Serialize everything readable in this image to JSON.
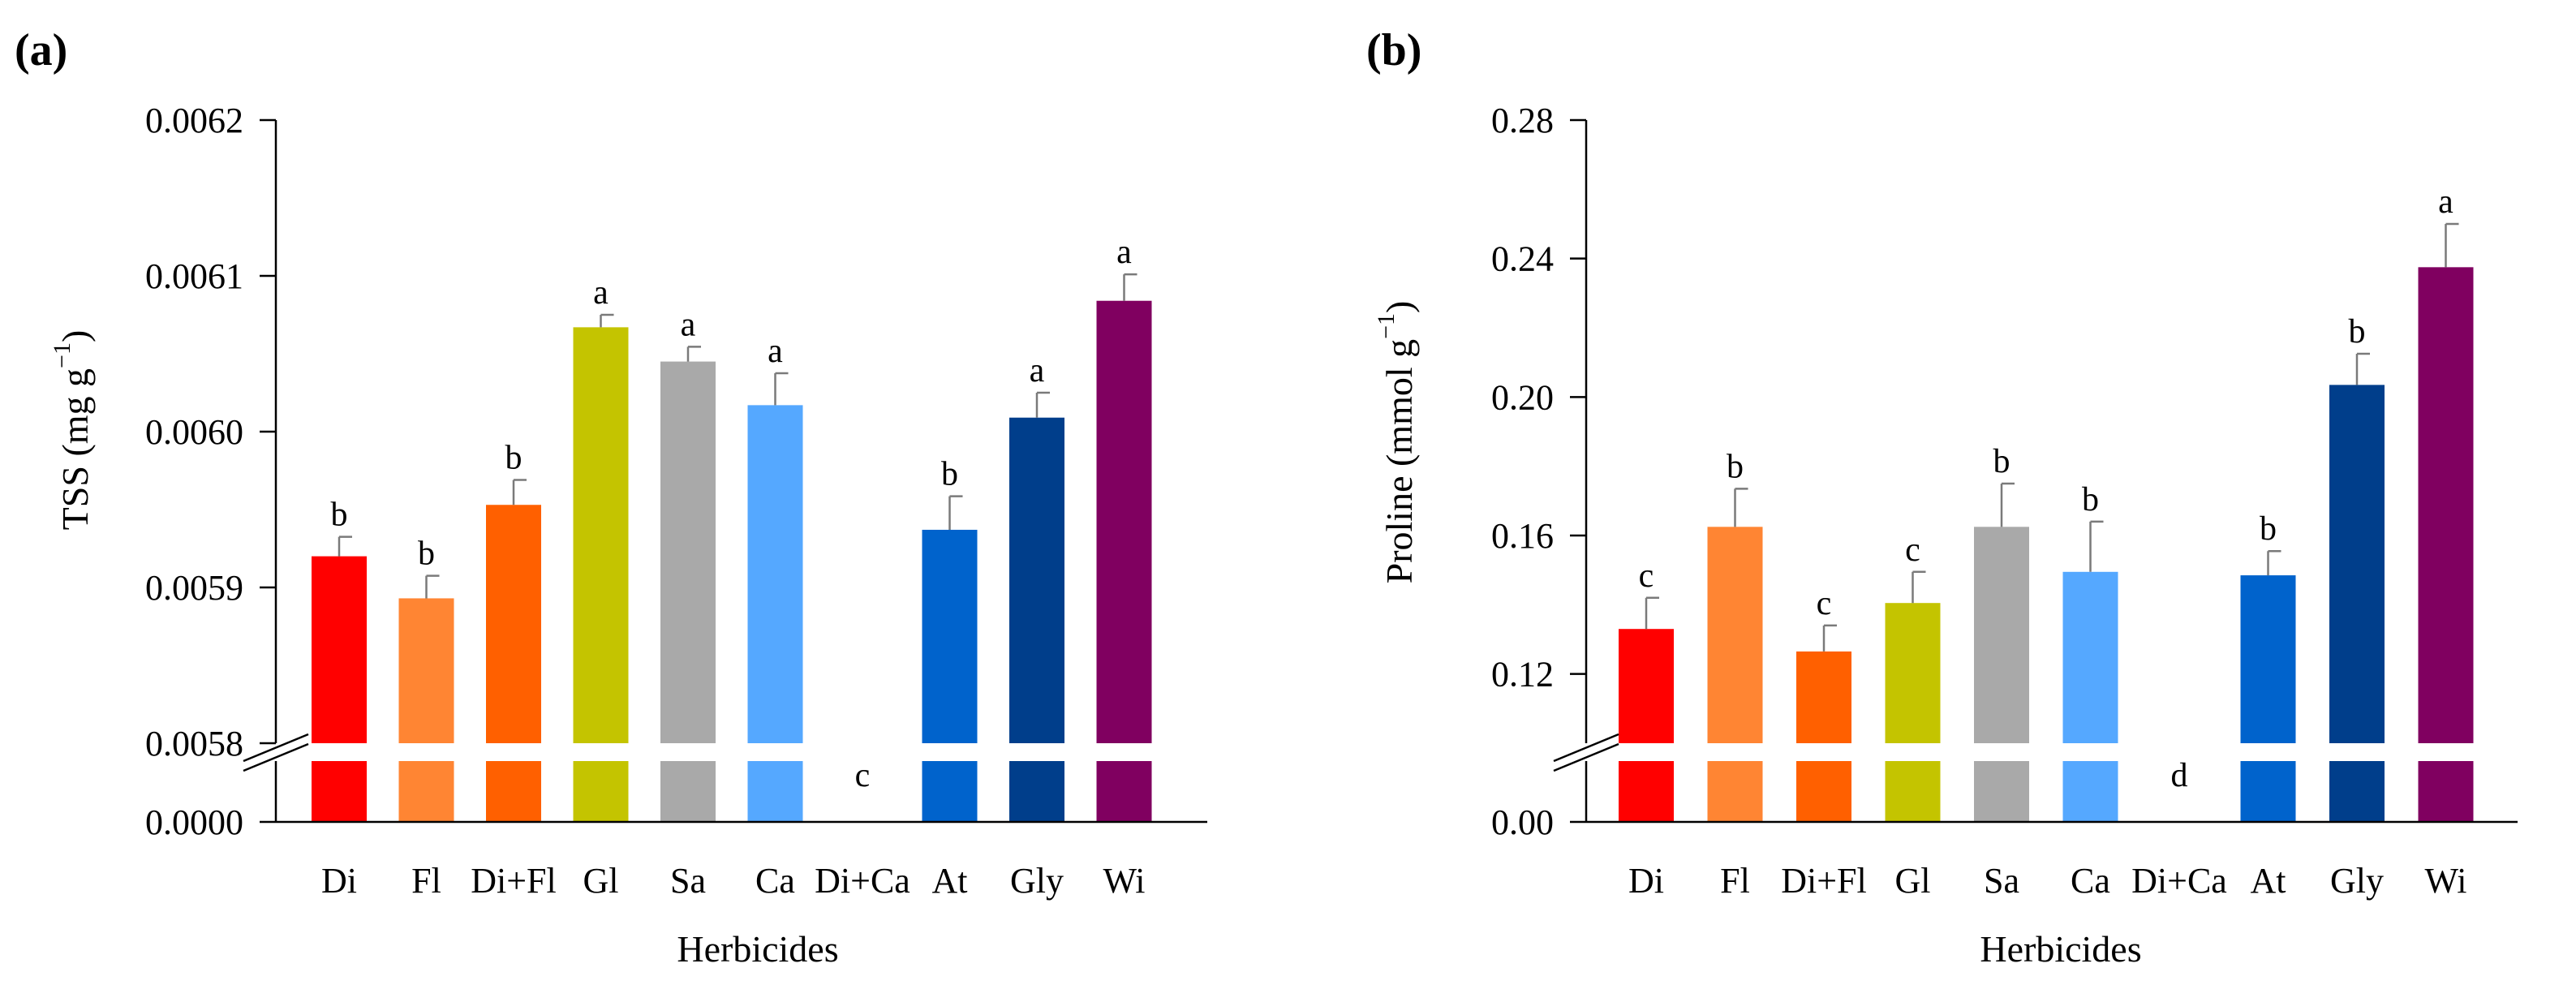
{
  "chart_data": [
    {
      "type": "bar",
      "panel": "(a)",
      "title": "",
      "xlabel": "Herbicides",
      "ylabel": "TSS (mg g−1)",
      "ylabel_main": "TSS (mg g",
      "ylabel_exp": "−1",
      "ylabel_close": ")",
      "categories": [
        "Di",
        "Fl",
        "Di+Fl",
        "Gl",
        "Sa",
        "Ca",
        "Di+Ca",
        "At",
        "Gly",
        "Wi"
      ],
      "values": [
        0.00592,
        0.005893,
        0.005953,
        0.006067,
        0.006045,
        0.006017,
        0.0,
        0.005937,
        0.006009,
        0.006084
      ],
      "errors": [
        1.25e-05,
        1.45e-05,
        1.6e-05,
        8e-06,
        9.5e-06,
        2.05e-05,
        0.0,
        2.15e-05,
        1.6e-05,
        1.7e-05
      ],
      "significance": [
        "b",
        "b",
        "b",
        "a",
        "a",
        "a",
        "c",
        "b",
        "a",
        "a"
      ],
      "colors": [
        "#ff0000",
        "#ff8533",
        "#ff6000",
        "#c4c400",
        "#a9a9a9",
        "#55a8ff",
        "#ffffff",
        "#0063cc",
        "#003e8b",
        "#800060"
      ],
      "yticks": [
        0.0,
        0.0058,
        0.0059,
        0.006,
        0.0061,
        0.0062
      ],
      "ytick_labels": [
        "0.0000",
        "0.0058",
        "0.0059",
        "0.0060",
        "0.0061",
        "0.0062"
      ],
      "ylim_upper": [
        0.0058,
        0.0062
      ],
      "axis_break": [
        0.0,
        0.0058
      ],
      "grid": false
    },
    {
      "type": "bar",
      "panel": "(b)",
      "title": "",
      "xlabel": "Herbicides",
      "ylabel": "Proline (mmol g−1)",
      "ylabel_main": "Proline (mmol g",
      "ylabel_exp": "−1",
      "ylabel_close": ")",
      "categories": [
        "Di",
        "Fl",
        "Di+Fl",
        "Gl",
        "Sa",
        "Ca",
        "Di+Ca",
        "At",
        "Gly",
        "Wi"
      ],
      "values": [
        0.133,
        0.1625,
        0.1265,
        0.1405,
        0.1625,
        0.1495,
        0.0,
        0.1485,
        0.2035,
        0.2375
      ],
      "errors": [
        0.009,
        0.011,
        0.0075,
        0.009,
        0.0125,
        0.0145,
        0.0,
        0.007,
        0.009,
        0.0125
      ],
      "significance": [
        "c",
        "b",
        "c",
        "c",
        "b",
        "b",
        "d",
        "b",
        "b",
        "a"
      ],
      "colors": [
        "#ff0000",
        "#ff8533",
        "#ff6000",
        "#c4c400",
        "#a9a9a9",
        "#55a8ff",
        "#ffffff",
        "#0063cc",
        "#003e8b",
        "#800060"
      ],
      "yticks": [
        0.0,
        0.12,
        0.16,
        0.2,
        0.24,
        0.28
      ],
      "ytick_labels": [
        "0.00",
        "0.12",
        "0.16",
        "0.20",
        "0.24",
        "0.28"
      ],
      "ylim_upper": [
        0.1,
        0.28
      ],
      "axis_break": [
        0.0,
        0.1
      ],
      "grid": false
    }
  ]
}
